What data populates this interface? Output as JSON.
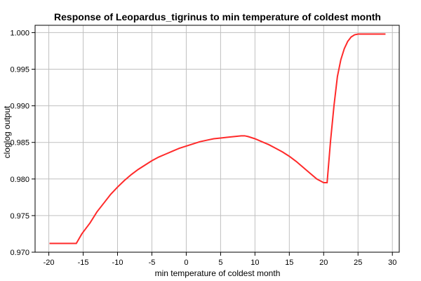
{
  "chart_data": {
    "type": "line",
    "title": "Response of Leopardus_tigrinus to min temperature of coldest month",
    "xlabel": "min temperature of coldest month",
    "ylabel": "cloglog output",
    "xlim": [
      -22,
      31
    ],
    "ylim": [
      0.97,
      1.001
    ],
    "x_ticks": [
      -20,
      -15,
      -10,
      -5,
      0,
      5,
      10,
      15,
      20,
      25,
      30
    ],
    "y_ticks": [
      0.97,
      0.975,
      0.98,
      0.985,
      0.99,
      0.995,
      1.0
    ],
    "y_tick_labels": [
      "0.970",
      "0.975",
      "0.980",
      "0.985",
      "0.990",
      "0.995",
      "1.000"
    ],
    "grid": true,
    "line_color": "#ff2a2a",
    "series": [
      {
        "x": [
          -19.9,
          -16.0,
          -15.2,
          -14,
          -13,
          -12,
          -11,
          -10,
          -9,
          -8,
          -7,
          -6,
          -5,
          -4,
          -3,
          -2,
          -1,
          0,
          1,
          2,
          3,
          4,
          5,
          6,
          7,
          8,
          8.5,
          9,
          10,
          11,
          12,
          13,
          14,
          15,
          16,
          17,
          18,
          19,
          20,
          20.5,
          21,
          21.5,
          22,
          22.5,
          23,
          23.5,
          24,
          24.5,
          25,
          26,
          27,
          28,
          29
        ],
        "y": [
          0.9712,
          0.9712,
          0.9725,
          0.974,
          0.9755,
          0.9767,
          0.9779,
          0.9789,
          0.9798,
          0.9806,
          0.9813,
          0.9819,
          0.9825,
          0.983,
          0.9834,
          0.9838,
          0.9842,
          0.9845,
          0.9848,
          0.9851,
          0.9853,
          0.9855,
          0.9856,
          0.9857,
          0.9858,
          0.9859,
          0.9859,
          0.9858,
          0.9855,
          0.9851,
          0.9847,
          0.9842,
          0.9837,
          0.9831,
          0.9824,
          0.9816,
          0.9808,
          0.98,
          0.9795,
          0.9795,
          0.9852,
          0.99,
          0.994,
          0.9963,
          0.9978,
          0.9988,
          0.9994,
          0.9997,
          0.9998,
          0.9998,
          0.9998,
          0.9998,
          0.9998
        ]
      }
    ]
  }
}
